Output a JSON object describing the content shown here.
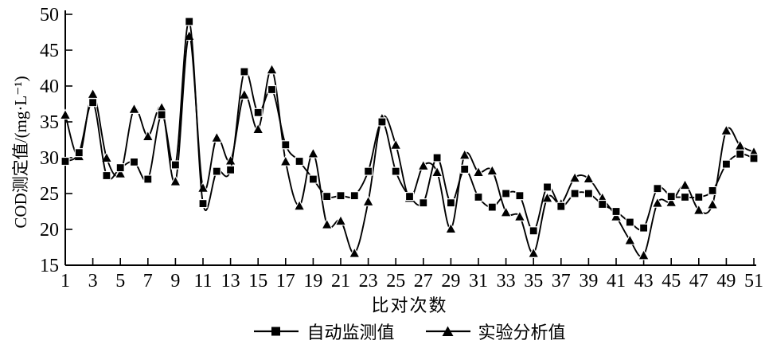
{
  "figure": {
    "background": "#ffffff",
    "line_color": "#000000"
  },
  "axes": {
    "y_title": "COD测定值/(mg·L⁻¹)",
    "x_title": "比对次数",
    "y_ticks": [
      15,
      20,
      25,
      30,
      35,
      40,
      45,
      50
    ],
    "x_ticks": [
      1,
      3,
      5,
      7,
      9,
      11,
      13,
      15,
      17,
      19,
      21,
      23,
      25,
      27,
      29,
      31,
      33,
      35,
      37,
      39,
      41,
      43,
      45,
      47,
      49,
      51
    ]
  },
  "legend": {
    "items": [
      {
        "label": "自动监测值",
        "marker": "square"
      },
      {
        "label": "实验分析值",
        "marker": "triangle"
      }
    ]
  },
  "chart_data": {
    "type": "line",
    "title": "",
    "xlabel": "比对次数",
    "ylabel": "COD测定值/(mg·L⁻¹)",
    "xlim": [
      1,
      51
    ],
    "ylim": [
      15,
      50
    ],
    "grid": false,
    "legend_position": "bottom",
    "x": [
      1,
      2,
      3,
      4,
      5,
      6,
      7,
      8,
      9,
      10,
      11,
      12,
      13,
      14,
      15,
      16,
      17,
      18,
      19,
      20,
      21,
      22,
      23,
      24,
      25,
      26,
      27,
      28,
      29,
      30,
      31,
      32,
      33,
      34,
      35,
      36,
      37,
      38,
      39,
      40,
      41,
      42,
      43,
      44,
      45,
      46,
      47,
      48,
      49,
      50,
      51
    ],
    "series": [
      {
        "name": "自动监测值",
        "marker": "square",
        "color": "#000000",
        "values": [
          29.5,
          30.7,
          37.7,
          27.5,
          28.6,
          29.4,
          27.0,
          36.0,
          29.0,
          49.0,
          23.6,
          28.1,
          28.3,
          42.0,
          36.3,
          39.5,
          31.8,
          29.5,
          27.0,
          24.6,
          24.7,
          24.7,
          28.1,
          35.0,
          28.1,
          24.6,
          23.7,
          30.0,
          23.7,
          28.4,
          24.5,
          23.1,
          25.0,
          24.7,
          19.8,
          25.9,
          23.2,
          25.0,
          25.0,
          23.5,
          22.5,
          21.0,
          20.2,
          25.7,
          24.6,
          24.5,
          24.5,
          25.4,
          29.1,
          30.5,
          29.9
        ]
      },
      {
        "name": "实验分析值",
        "marker": "triangle",
        "color": "#000000",
        "values": [
          36.0,
          30.2,
          38.9,
          30.0,
          27.8,
          36.8,
          33.0,
          37.0,
          26.7,
          47.0,
          25.8,
          32.8,
          29.6,
          38.8,
          34.0,
          42.3,
          29.5,
          23.3,
          30.6,
          20.7,
          21.2,
          16.7,
          23.9,
          35.5,
          31.8,
          24.4,
          28.9,
          28.0,
          20.1,
          30.4,
          28.0,
          28.2,
          22.4,
          21.8,
          16.7,
          24.4,
          23.6,
          27.2,
          27.1,
          24.4,
          21.8,
          18.5,
          16.4,
          23.7,
          23.8,
          26.2,
          22.7,
          23.5,
          33.8,
          31.7,
          30.8
        ]
      }
    ]
  }
}
